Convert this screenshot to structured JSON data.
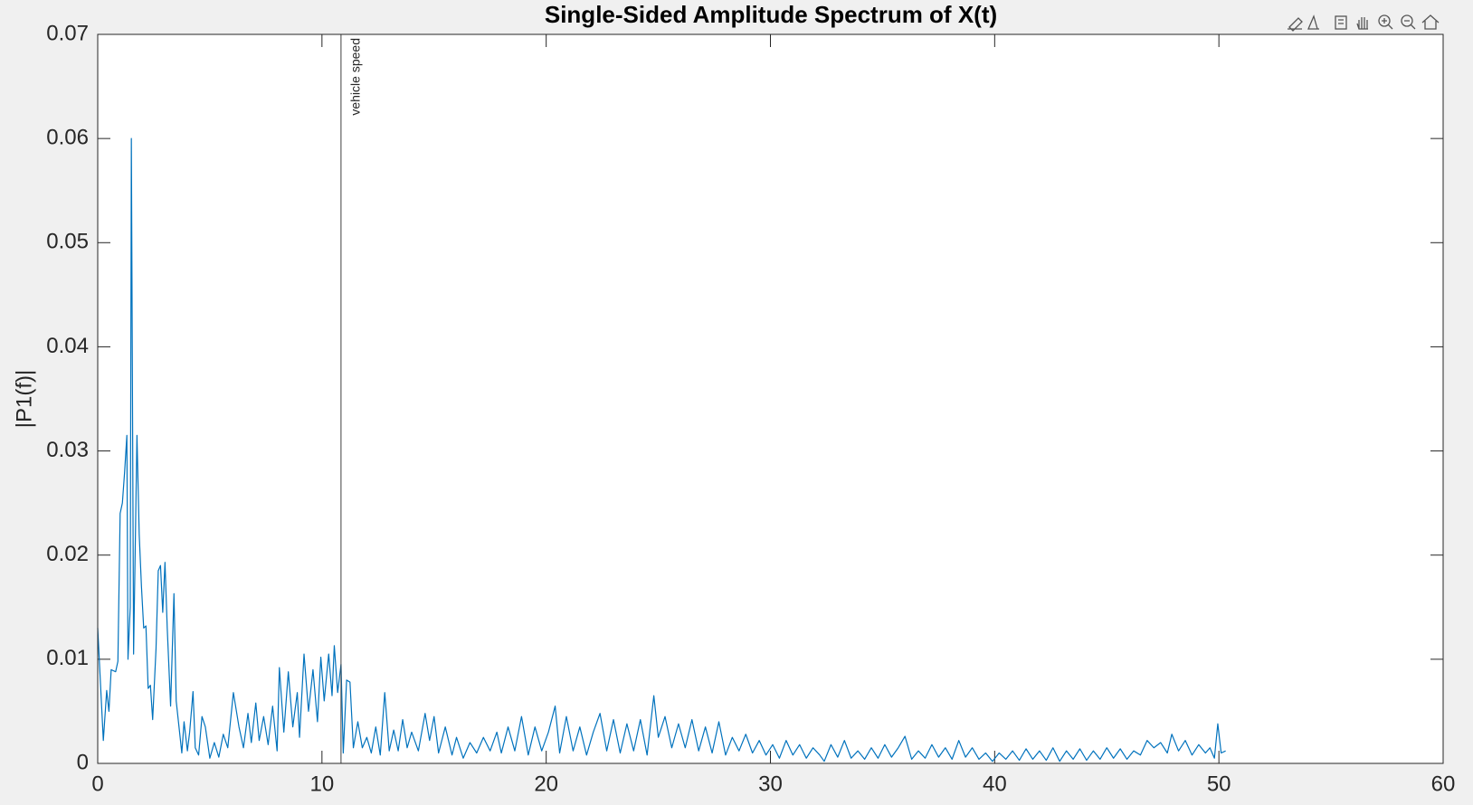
{
  "chart_data": {
    "type": "line",
    "title": "Single-Sided Amplitude Spectrum of X(t)",
    "y_label": "|P1(f)|",
    "xlim": [
      0,
      60
    ],
    "xticks": [
      0,
      10,
      20,
      30,
      40,
      50,
      60
    ],
    "ylim": [
      0,
      0.07
    ],
    "yticks": [
      0,
      0.01,
      0.02,
      0.03,
      0.04,
      0.05,
      0.06,
      0.07
    ],
    "grid": false,
    "xline": {
      "value": 10.85,
      "label": "vehicle speed",
      "color": "#404040"
    },
    "x": [
      0,
      0.15,
      0.25,
      0.4,
      0.5,
      0.6,
      0.8,
      0.9,
      1.0,
      1.1,
      1.2,
      1.3,
      1.35,
      1.45,
      1.5,
      1.6,
      1.75,
      1.85,
      1.95,
      2.05,
      2.15,
      2.25,
      2.35,
      2.45,
      2.6,
      2.7,
      2.8,
      2.9,
      3.0,
      3.1,
      3.25,
      3.4,
      3.5,
      3.6,
      3.75,
      3.85,
      4.0,
      4.1,
      4.25,
      4.35,
      4.5,
      4.65,
      4.8,
      5.0,
      5.2,
      5.4,
      5.6,
      5.8,
      6.05,
      6.3,
      6.5,
      6.7,
      6.85,
      7.05,
      7.2,
      7.4,
      7.6,
      7.8,
      8.0,
      8.1,
      8.3,
      8.5,
      8.7,
      8.9,
      9.0,
      9.2,
      9.4,
      9.6,
      9.8,
      9.95,
      10.1,
      10.3,
      10.45,
      10.55,
      10.7,
      10.85,
      10.95,
      11.1,
      11.25,
      11.4,
      11.6,
      11.8,
      12.0,
      12.2,
      12.4,
      12.6,
      12.8,
      13.0,
      13.2,
      13.4,
      13.6,
      13.8,
      14.0,
      14.3,
      14.6,
      14.8,
      15.0,
      15.2,
      15.5,
      15.8,
      16.0,
      16.3,
      16.6,
      16.9,
      17.2,
      17.5,
      17.8,
      18.0,
      18.3,
      18.6,
      18.9,
      19.2,
      19.5,
      19.8,
      20.1,
      20.4,
      20.6,
      20.9,
      21.2,
      21.5,
      21.8,
      22.1,
      22.4,
      22.7,
      23.0,
      23.3,
      23.6,
      23.9,
      24.2,
      24.5,
      24.8,
      25.0,
      25.3,
      25.6,
      25.9,
      26.2,
      26.5,
      26.8,
      27.1,
      27.4,
      27.7,
      28.0,
      28.3,
      28.6,
      28.9,
      29.2,
      29.5,
      29.8,
      30.1,
      30.4,
      30.7,
      31.0,
      31.3,
      31.6,
      31.9,
      32.2,
      32.4,
      32.7,
      33.0,
      33.3,
      33.6,
      33.9,
      34.2,
      34.5,
      34.8,
      35.1,
      35.4,
      35.7,
      36.0,
      36.3,
      36.6,
      36.9,
      37.2,
      37.5,
      37.8,
      38.1,
      38.4,
      38.7,
      39.0,
      39.3,
      39.6,
      39.9,
      40.2,
      40.5,
      40.8,
      41.1,
      41.4,
      41.7,
      42.0,
      42.3,
      42.6,
      42.9,
      43.2,
      43.5,
      43.8,
      44.1,
      44.4,
      44.7,
      45.0,
      45.3,
      45.6,
      45.9,
      46.2,
      46.5,
      46.8,
      47.1,
      47.4,
      47.7,
      47.9,
      48.2,
      48.5,
      48.8,
      49.1,
      49.4,
      49.6,
      49.8,
      49.95,
      50.1,
      50.3
    ],
    "series": [
      {
        "name": "P1",
        "color": "#0072bd",
        "values": [
          0.013,
          0.0065,
          0.0022,
          0.007,
          0.005,
          0.009,
          0.0088,
          0.0098,
          0.024,
          0.025,
          0.028,
          0.0315,
          0.01,
          0.015,
          0.06,
          0.0105,
          0.0315,
          0.022,
          0.017,
          0.013,
          0.0132,
          0.0072,
          0.0075,
          0.0042,
          0.011,
          0.0185,
          0.019,
          0.0145,
          0.0193,
          0.013,
          0.0055,
          0.0163,
          0.006,
          0.004,
          0.001,
          0.004,
          0.0012,
          0.003,
          0.0069,
          0.0015,
          0.0008,
          0.0045,
          0.0035,
          0.0005,
          0.002,
          0.0006,
          0.0028,
          0.0015,
          0.0068,
          0.0035,
          0.0015,
          0.0048,
          0.002,
          0.0058,
          0.0022,
          0.0045,
          0.0018,
          0.0055,
          0.0012,
          0.0092,
          0.003,
          0.0088,
          0.0035,
          0.0068,
          0.0025,
          0.0105,
          0.005,
          0.009,
          0.004,
          0.0102,
          0.006,
          0.0105,
          0.0065,
          0.0113,
          0.0068,
          0.0095,
          0.001,
          0.008,
          0.0078,
          0.0015,
          0.004,
          0.0015,
          0.0025,
          0.001,
          0.0035,
          0.0008,
          0.0068,
          0.0012,
          0.0032,
          0.0012,
          0.0042,
          0.0015,
          0.003,
          0.0012,
          0.0048,
          0.0022,
          0.0045,
          0.001,
          0.0035,
          0.0008,
          0.0025,
          0.0005,
          0.002,
          0.001,
          0.0025,
          0.0012,
          0.003,
          0.001,
          0.0035,
          0.0012,
          0.0045,
          0.0008,
          0.0035,
          0.0012,
          0.003,
          0.0055,
          0.001,
          0.0045,
          0.0012,
          0.0035,
          0.0008,
          0.003,
          0.0048,
          0.0012,
          0.0042,
          0.001,
          0.0038,
          0.0012,
          0.0042,
          0.0008,
          0.0065,
          0.0025,
          0.0045,
          0.0015,
          0.0038,
          0.0015,
          0.0042,
          0.0012,
          0.0035,
          0.001,
          0.004,
          0.0008,
          0.0025,
          0.0012,
          0.0028,
          0.001,
          0.0022,
          0.0008,
          0.0018,
          0.0005,
          0.0022,
          0.0008,
          0.0018,
          0.0005,
          0.0015,
          0.0008,
          0.0002,
          0.0018,
          0.0006,
          0.0022,
          0.0005,
          0.0012,
          0.0004,
          0.0015,
          0.0005,
          0.0018,
          0.0006,
          0.0015,
          0.0026,
          0.0004,
          0.0012,
          0.0005,
          0.0018,
          0.0006,
          0.0015,
          0.0004,
          0.0022,
          0.0006,
          0.0015,
          0.0004,
          0.001,
          0.0002,
          0.001,
          0.0004,
          0.0012,
          0.0003,
          0.0014,
          0.0004,
          0.0012,
          0.0003,
          0.0015,
          0.0002,
          0.0012,
          0.0004,
          0.0014,
          0.0003,
          0.0012,
          0.0004,
          0.0015,
          0.0005,
          0.0014,
          0.0004,
          0.0012,
          0.0008,
          0.0022,
          0.0015,
          0.002,
          0.001,
          0.0028,
          0.0012,
          0.0022,
          0.0008,
          0.0018,
          0.001,
          0.0015,
          0.0005,
          0.0038,
          0.001,
          0.0012
        ]
      }
    ]
  }
}
